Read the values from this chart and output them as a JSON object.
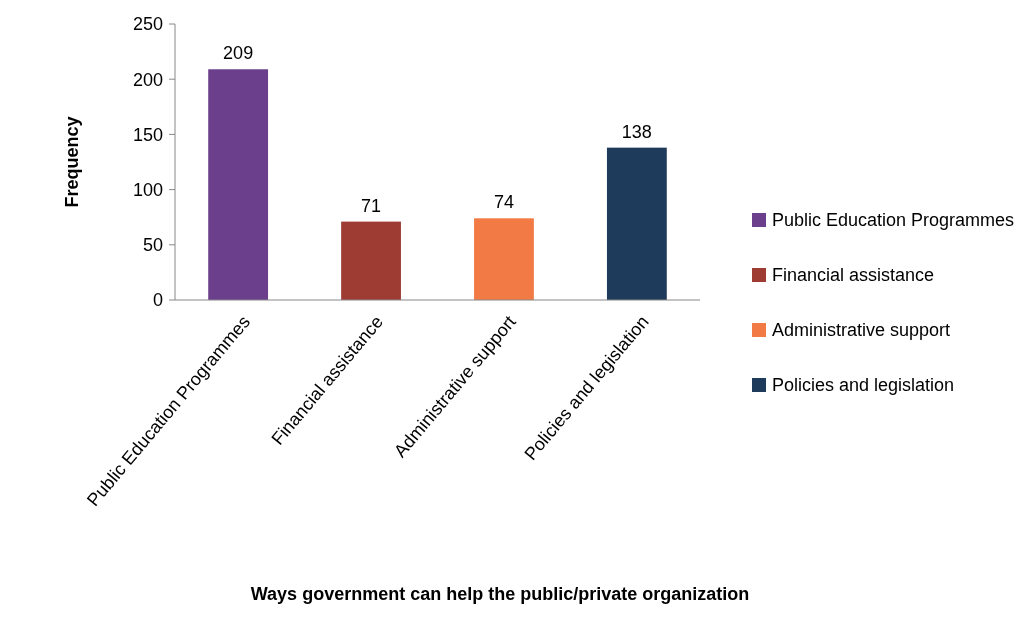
{
  "chart_data": {
    "type": "bar",
    "xlabel": "Ways government can help the public/private organization",
    "ylabel": "Frequency",
    "categories": [
      "Public Education Programmes",
      "Financial assistance",
      "Administrative support",
      "Policies and legislation"
    ],
    "series": [
      {
        "name": "Public Education Programmes",
        "color": "#6b3f8c",
        "values": [
          209,
          null,
          null,
          null
        ]
      },
      {
        "name": "Financial assistance",
        "color": "#9e3c34",
        "values": [
          null,
          71,
          null,
          null
        ]
      },
      {
        "name": "Administrative support",
        "color": "#f27a45",
        "values": [
          null,
          null,
          74,
          null
        ]
      },
      {
        "name": "Policies and legislation",
        "color": "#1f3b5c",
        "values": [
          null,
          null,
          null,
          138
        ]
      }
    ],
    "ylim": [
      0,
      250
    ],
    "yticks": [
      0,
      50,
      100,
      150,
      200,
      250
    ],
    "data_labels": true,
    "legend": "right"
  }
}
